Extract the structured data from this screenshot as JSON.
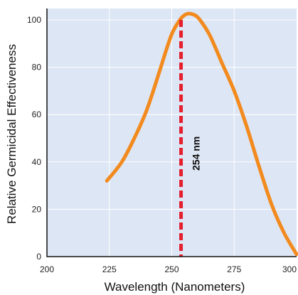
{
  "chart_data": {
    "type": "line",
    "title": "",
    "xlabel": "Wavelength (Nanometers)",
    "ylabel": "Relative Germicidal Effectiveness",
    "xlim": [
      200,
      300
    ],
    "ylim": [
      0,
      100
    ],
    "xticks": [
      "200",
      "225",
      "250",
      "275",
      "300"
    ],
    "yticks": [
      "0",
      "20",
      "40",
      "60",
      "80",
      "100"
    ],
    "grid": true,
    "series": [
      {
        "x": [
          224,
          230,
          235,
          240,
          245,
          248,
          250,
          252,
          254,
          256,
          258,
          260,
          262,
          265,
          268,
          270,
          275,
          280,
          285,
          290,
          295,
          300
        ],
        "y": [
          32,
          40,
          50,
          62,
          78,
          88,
          94,
          98,
          101,
          102.5,
          102.5,
          101.5,
          99,
          94,
          87,
          82,
          70,
          55,
          38,
          22,
          10,
          1
        ],
        "color": "#f28a1e"
      }
    ],
    "reference_line": {
      "x": 254,
      "label": "254 nm",
      "color": "#e4202e",
      "style": "dashed"
    }
  },
  "colors": {
    "plot_background": "#dde6f4",
    "grid": "#ffffff",
    "axis": "#111111"
  }
}
